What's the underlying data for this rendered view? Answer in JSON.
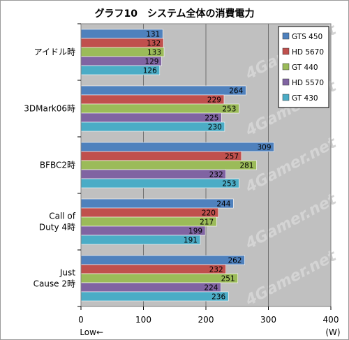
{
  "chart_data": {
    "type": "bar",
    "orientation": "horizontal",
    "title": "グラフ10　システム全体の消費電力",
    "categories": [
      [
        "アイドル時"
      ],
      [
        "3DMark06時"
      ],
      [
        "BFBC2時"
      ],
      [
        "Call of",
        "Duty 4時"
      ],
      [
        "Just",
        "Cause 2時"
      ]
    ],
    "series": [
      {
        "name": "GTS 450",
        "color": "#4f81bd",
        "values": [
          131,
          264,
          309,
          244,
          262
        ]
      },
      {
        "name": "HD 5670",
        "color": "#c0504d",
        "values": [
          132,
          229,
          257,
          220,
          232
        ]
      },
      {
        "name": "GT 440",
        "color": "#9bbb59",
        "values": [
          133,
          253,
          281,
          217,
          251
        ]
      },
      {
        "name": "HD 5570",
        "color": "#8064a2",
        "values": [
          129,
          225,
          232,
          199,
          224
        ]
      },
      {
        "name": "GT 430",
        "color": "#4bacc6",
        "values": [
          126,
          230,
          253,
          191,
          236
        ]
      }
    ],
    "xlim": [
      0,
      400
    ],
    "xticks": [
      0,
      100,
      200,
      300,
      400
    ],
    "xlabel": "(W)",
    "x_direction_note": "Low←",
    "grid": true,
    "legend_position": "top-right",
    "data_labels": true,
    "watermark": "4Gamer.net"
  }
}
